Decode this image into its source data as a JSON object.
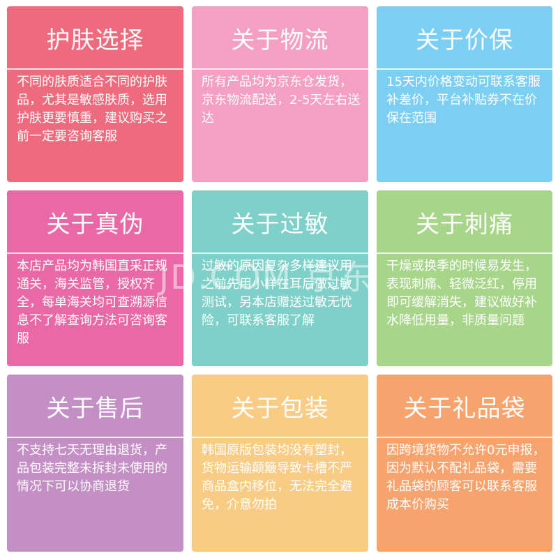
{
  "colors": {
    "c0": "#ee6b7d",
    "c1": "#f3a0c3",
    "c2": "#7ccff3",
    "c3": "#e969a6",
    "c4": "#7fd0c9",
    "c5": "#a7d68a",
    "c6": "#c48fc4",
    "c7": "#f9cc85",
    "c8": "#f6a36e"
  },
  "cards": [
    {
      "title": "护肤选择",
      "body": "不同的肤质适合不同的护肤品，尤其是敏感肤质，选用护肤更要慎重，建议购买之前一定要咨询客服"
    },
    {
      "title": "关于物流",
      "body": "所有产品均为京东仓发货，京东物流配送，2-5天左右送达"
    },
    {
      "title": "关于价保",
      "body": "15天内价格变动可联系客服补差价，平台补贴券不在价保在范围"
    },
    {
      "title": "关于真伪",
      "body": "本店产品均为韩国直采正规通关，海关监管，授权齐全，每单海关均可查溯源信息不了解查询方法可咨询客服"
    },
    {
      "title": "关于过敏",
      "body": "过敏的原因复杂多样建议用之前先用小样在耳后做过敏测试，另本店赠送过敏无忧险，可联系客服了解"
    },
    {
      "title": "关于刺痛",
      "body": "干燥或换季的时候易发生，表现刺痛、轻微泛红，停用即可缓解消失，建议做好补水降低用量，非质量问题"
    },
    {
      "title": "关于售后",
      "body": "不支持七天无理由退货，产品包装完整未拆封未使用的情况下可以协商退货"
    },
    {
      "title": "关于包装",
      "body": "韩国原版包装均没有塑封，货物运输颠簸导致卡槽不严商品盒内移位，无法完全避免，介意勿拍"
    },
    {
      "title": "关于礼品袋",
      "body": "因跨境货物不允许0元申报，因为默认不配礼品袋，需要礼品袋的顾客可以联系客服成本价购买"
    }
  ],
  "watermark": "JD.COM 京东"
}
